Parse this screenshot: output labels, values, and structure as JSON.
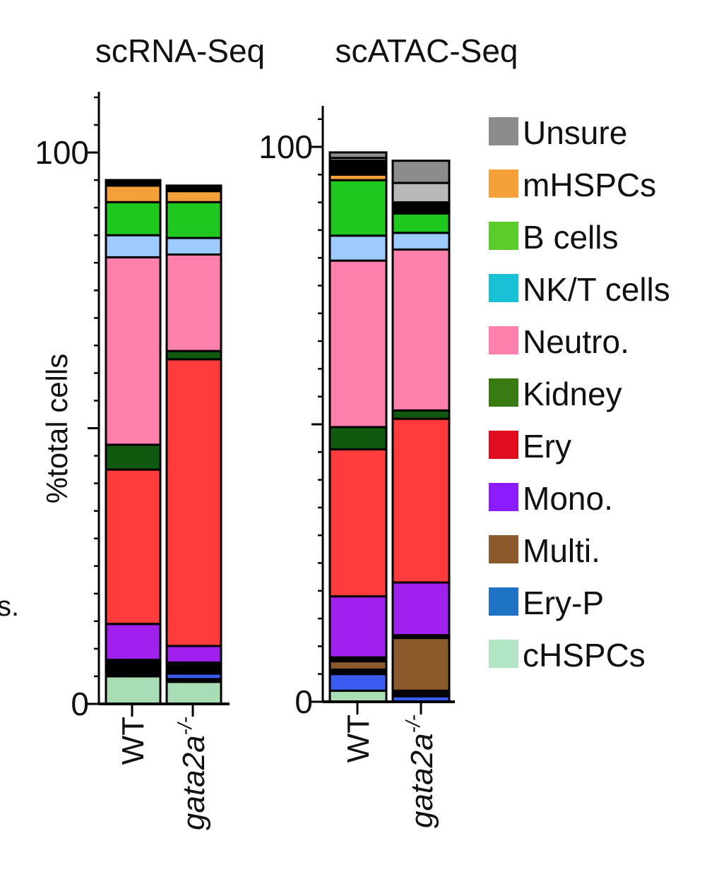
{
  "fragments": {
    "left_cut": "s."
  },
  "chart_data": [
    {
      "type": "bar",
      "stacked": true,
      "title": "scRNA-Seq",
      "ylabel": "%total cells",
      "ylim": [
        0,
        100
      ],
      "yticks": [
        "0",
        "100"
      ],
      "categories": [
        "WT",
        "gata2a-/-"
      ],
      "category_labels": [
        {
          "text": "WT",
          "italic": false
        },
        {
          "text": "gata2a",
          "sup": "-/-",
          "italic": true
        }
      ],
      "series": [
        {
          "name": "cHSPCs",
          "color": "#a8ddb5",
          "values": [
            5.0,
            4.0
          ]
        },
        {
          "name": "",
          "color": "#000000",
          "values": [
            3.0,
            0.5
          ]
        },
        {
          "name": "Ery-P",
          "color": "#3b5cf0",
          "values": [
            0,
            1.0
          ]
        },
        {
          "name": "",
          "color": "#000000",
          "values": [
            0,
            2.0
          ]
        },
        {
          "name": "Mono.",
          "color": "#a020f0",
          "values": [
            6.5,
            3.0
          ]
        },
        {
          "name": "Ery",
          "color": "#ff3b3b",
          "values": [
            28.0,
            52.0
          ]
        },
        {
          "name": "Kidney",
          "color": "#0f5a0f",
          "values": [
            4.5,
            1.5
          ]
        },
        {
          "name": "Neutro.",
          "color": "#ff7fad",
          "values": [
            34.0,
            17.5
          ]
        },
        {
          "name": "NK/T cells",
          "color": "#9ecbff",
          "values": [
            4.0,
            3.0
          ]
        },
        {
          "name": "B cells",
          "color": "#1ec81e",
          "values": [
            6.0,
            6.5
          ]
        },
        {
          "name": "mHSPCs",
          "color": "#f5a13a",
          "values": [
            3.0,
            2.0
          ]
        },
        {
          "name": "",
          "color": "#000000",
          "values": [
            1.0,
            1.0
          ]
        }
      ]
    },
    {
      "type": "bar",
      "stacked": true,
      "title": "scATAC-Seq",
      "ylabel": "",
      "ylim": [
        0,
        100
      ],
      "yticks": [
        "0",
        "100"
      ],
      "categories": [
        "WT",
        "gata2a-/-"
      ],
      "category_labels": [
        {
          "text": "WT",
          "italic": false
        },
        {
          "text": "gata2a",
          "sup": "-/-",
          "italic": true
        }
      ],
      "series": [
        {
          "name": "cHSPCs",
          "color": "#a8ddb5",
          "values": [
            2.0,
            0
          ]
        },
        {
          "name": "Ery-P",
          "color": "#3b5cf0",
          "values": [
            3.0,
            1.0
          ]
        },
        {
          "name": "",
          "color": "#000000",
          "values": [
            0.8,
            1.0
          ]
        },
        {
          "name": "Multi.",
          "color": "#8b5a2b",
          "values": [
            1.5,
            9.5
          ]
        },
        {
          "name": "",
          "color": "#000000",
          "values": [
            0.7,
            0.5
          ]
        },
        {
          "name": "Mono.",
          "color": "#a020f0",
          "values": [
            11.0,
            9.5
          ]
        },
        {
          "name": "Ery",
          "color": "#ff3b3b",
          "values": [
            26.5,
            29.5
          ]
        },
        {
          "name": "Kidney",
          "color": "#0f5a0f",
          "values": [
            4.0,
            1.5
          ]
        },
        {
          "name": "Neutro.",
          "color": "#ff7fad",
          "values": [
            30.0,
            29.0
          ]
        },
        {
          "name": "NK/T cells",
          "color": "#9ecbff",
          "values": [
            4.5,
            3.0
          ]
        },
        {
          "name": "B cells",
          "color": "#1ec81e",
          "values": [
            10.0,
            3.5
          ]
        },
        {
          "name": "mHSPCs",
          "color": "#f5a13a",
          "values": [
            1.0,
            0
          ]
        },
        {
          "name": "",
          "color": "#000000",
          "values": [
            2.5,
            2.0
          ]
        },
        {
          "name": "Unsure",
          "color": "#b8b8b8",
          "values": [
            0.5,
            3.5
          ]
        },
        {
          "name": "Unsure",
          "color": "#8c8c8c",
          "values": [
            1.0,
            4.0
          ]
        }
      ]
    }
  ],
  "legend": {
    "position": "right",
    "items": [
      {
        "label": "Unsure",
        "color": "#8c8c8c"
      },
      {
        "label": "mHSPCs",
        "color": "#f5a13a"
      },
      {
        "label": "B cells",
        "color": "#5ccc2a"
      },
      {
        "label": "NK/T cells",
        "color": "#18c1d4"
      },
      {
        "label": "Neutro.",
        "color": "#ff7fad"
      },
      {
        "label": "Kidney",
        "color": "#3a7a12"
      },
      {
        "label": "Ery",
        "color": "#e00d1e"
      },
      {
        "label": "Mono.",
        "color": "#8a1cff"
      },
      {
        "label": "Multi.",
        "color": "#8b5a2b"
      },
      {
        "label": "Ery-P",
        "color": "#1f73c4"
      },
      {
        "label": "cHSPCs",
        "color": "#b2e5c3"
      }
    ]
  }
}
